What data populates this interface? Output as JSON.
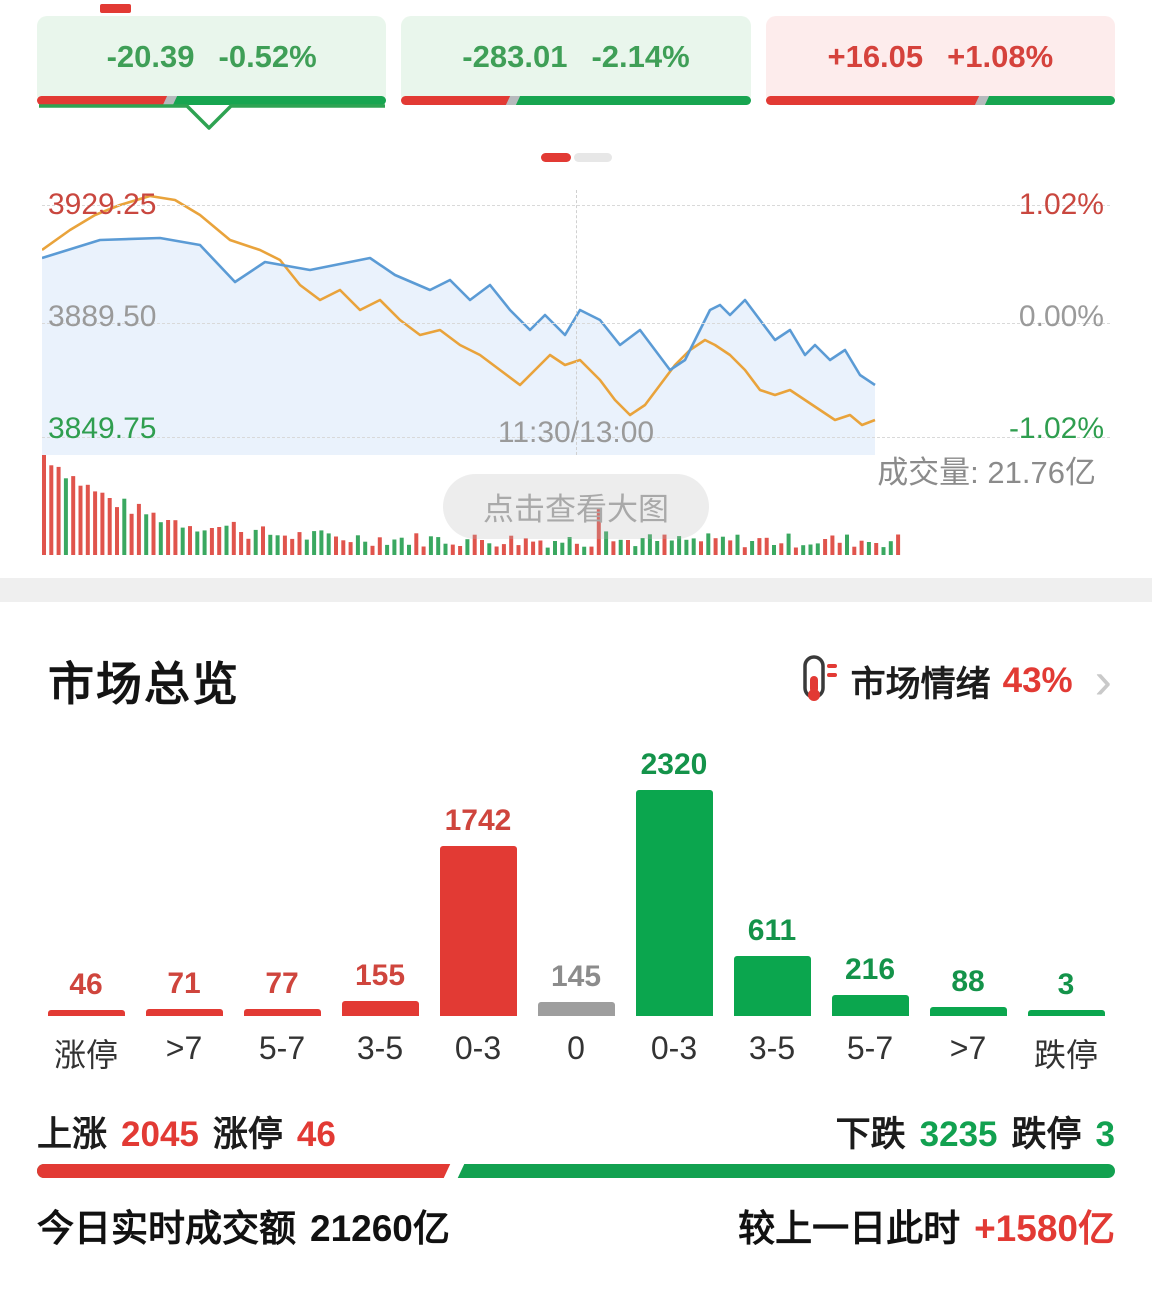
{
  "colors": {
    "red": "#e23a34",
    "green": "#0ba64e",
    "gray_bar": "#9e9e9e",
    "vol_red": "#e0544c",
    "vol_green": "#3aa860"
  },
  "top_cards": [
    {
      "change": "-20.39",
      "pct": "-0.52%",
      "theme": "green",
      "red_ratio": 38,
      "selected": true
    },
    {
      "change": "-283.01",
      "pct": "-2.14%",
      "theme": "green",
      "red_ratio": 32,
      "selected": false
    },
    {
      "change": "+16.05",
      "pct": "+1.08%",
      "theme": "red",
      "red_ratio": 62,
      "selected": false
    }
  ],
  "chart": {
    "y_labels": {
      "high": "3929.25",
      "mid": "3889.50",
      "low": "3849.75"
    },
    "pct_labels": {
      "high": "1.02%",
      "mid": "0.00%",
      "low": "-1.02%"
    },
    "time_label": "11:30/13:00",
    "volume_label": "成交量: 21.76亿",
    "zoom_button": "点击查看大图",
    "blue_points": [
      [
        0,
        68
      ],
      [
        58,
        50
      ],
      [
        118,
        48
      ],
      [
        158,
        55
      ],
      [
        193,
        92
      ],
      [
        223,
        72
      ],
      [
        268,
        80
      ],
      [
        328,
        68
      ],
      [
        353,
        85
      ],
      [
        388,
        100
      ],
      [
        408,
        90
      ],
      [
        428,
        110
      ],
      [
        448,
        95
      ],
      [
        468,
        120
      ],
      [
        488,
        140
      ],
      [
        503,
        125
      ],
      [
        523,
        145
      ],
      [
        538,
        120
      ],
      [
        558,
        130
      ],
      [
        578,
        155
      ],
      [
        598,
        140
      ],
      [
        613,
        160
      ],
      [
        628,
        180
      ],
      [
        643,
        170
      ],
      [
        658,
        140
      ],
      [
        668,
        120
      ],
      [
        678,
        115
      ],
      [
        688,
        125
      ],
      [
        703,
        110
      ],
      [
        718,
        130
      ],
      [
        733,
        150
      ],
      [
        748,
        140
      ],
      [
        763,
        165
      ],
      [
        773,
        155
      ],
      [
        788,
        170
      ],
      [
        803,
        160
      ],
      [
        818,
        185
      ],
      [
        833,
        195
      ]
    ],
    "orange_points": [
      [
        0,
        60
      ],
      [
        28,
        40
      ],
      [
        53,
        25
      ],
      [
        78,
        15
      ],
      [
        108,
        6
      ],
      [
        133,
        10
      ],
      [
        158,
        25
      ],
      [
        188,
        50
      ],
      [
        218,
        60
      ],
      [
        238,
        70
      ],
      [
        258,
        95
      ],
      [
        278,
        110
      ],
      [
        298,
        100
      ],
      [
        318,
        120
      ],
      [
        338,
        110
      ],
      [
        358,
        130
      ],
      [
        378,
        145
      ],
      [
        398,
        140
      ],
      [
        418,
        155
      ],
      [
        438,
        165
      ],
      [
        458,
        180
      ],
      [
        478,
        195
      ],
      [
        493,
        180
      ],
      [
        508,
        165
      ],
      [
        523,
        175
      ],
      [
        538,
        170
      ],
      [
        558,
        190
      ],
      [
        573,
        210
      ],
      [
        588,
        225
      ],
      [
        603,
        215
      ],
      [
        618,
        195
      ],
      [
        633,
        175
      ],
      [
        648,
        160
      ],
      [
        663,
        150
      ],
      [
        673,
        155
      ],
      [
        688,
        165
      ],
      [
        703,
        180
      ],
      [
        718,
        200
      ],
      [
        733,
        205
      ],
      [
        748,
        200
      ],
      [
        763,
        210
      ],
      [
        778,
        220
      ],
      [
        793,
        230
      ],
      [
        808,
        225
      ],
      [
        820,
        235
      ],
      [
        833,
        230
      ]
    ],
    "volume_bar_count": 118
  },
  "overview": {
    "title": "市场总览",
    "sentiment_label": "市场情绪",
    "sentiment_value": "43%",
    "chevron": "›",
    "distribution": {
      "categories": [
        "涨停",
        ">7",
        "5-7",
        "3-5",
        "0-3",
        "0",
        "0-3",
        "3-5",
        "5-7",
        ">7",
        "跌停"
      ],
      "values": [
        46,
        71,
        77,
        155,
        1742,
        145,
        2320,
        611,
        216,
        88,
        3
      ],
      "colors": [
        "red",
        "red",
        "red",
        "red",
        "red",
        "gray",
        "green",
        "green",
        "green",
        "green",
        "green"
      ]
    },
    "stats": {
      "up_label": "上涨",
      "up_value": "2045",
      "up_limit_label": "涨停",
      "up_limit_value": "46",
      "down_label": "下跌",
      "down_value": "3235",
      "down_limit_label": "跌停",
      "down_limit_value": "3",
      "up_ratio": 38.7,
      "turnover_label": "今日实时成交额",
      "turnover_value": "21260亿",
      "compare_label": "较上一日此时",
      "compare_value": "+1580亿"
    }
  },
  "chart_data": [
    {
      "type": "line",
      "title": "指数分时走势",
      "series": [
        "blue_index",
        "orange_index"
      ],
      "y_axis_prices": [
        3849.75,
        3889.5,
        3929.25
      ],
      "y_axis_percent": [
        -1.02,
        0.0,
        1.02
      ],
      "x_mid_label": "11:30/13:00",
      "volume_total": "21.76亿",
      "legend_position": "none",
      "grid": "dashed"
    },
    {
      "type": "bar",
      "title": "涨跌分布",
      "categories": [
        "涨停",
        ">7",
        "5-7",
        "3-5",
        "0-3",
        "0",
        "0-3",
        "3-5",
        "5-7",
        ">7",
        "跌停"
      ],
      "values": [
        46,
        71,
        77,
        155,
        1742,
        145,
        2320,
        611,
        216,
        88,
        3
      ],
      "ylim": [
        0,
        2320
      ]
    }
  ]
}
